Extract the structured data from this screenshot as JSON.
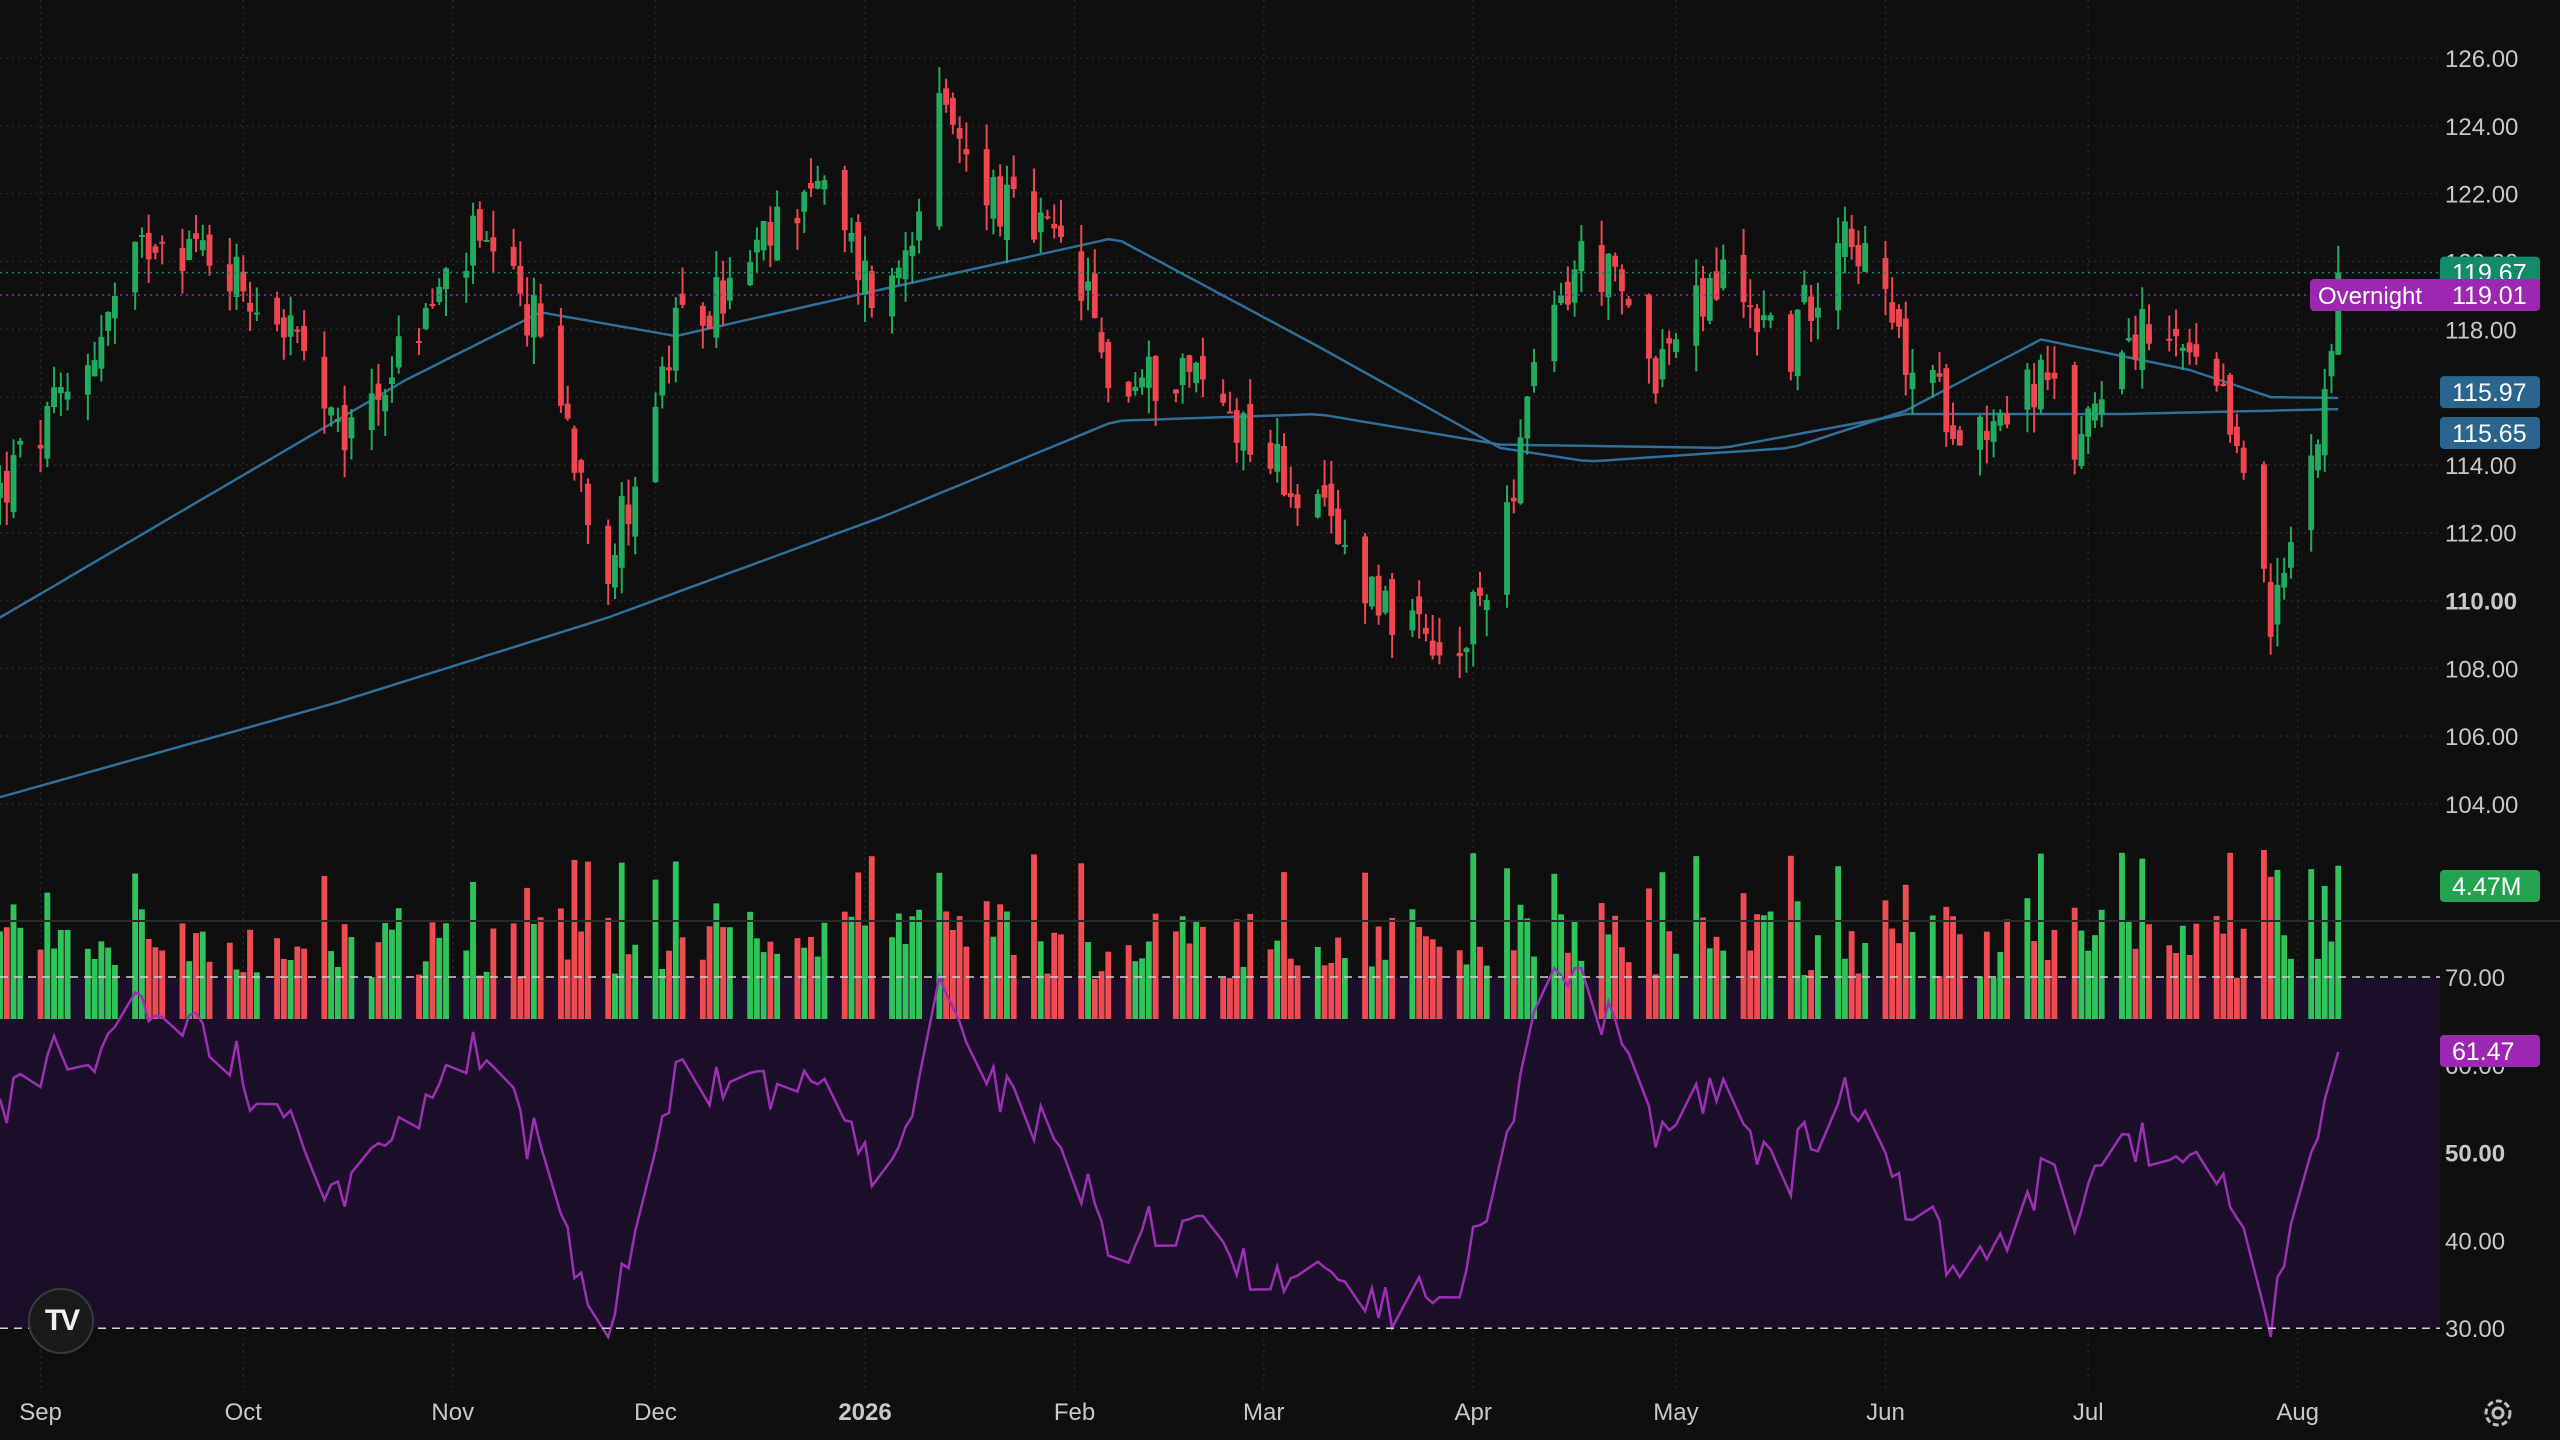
{
  "app": {
    "logo_text": "TV"
  },
  "colors": {
    "background": "#0f0f0f",
    "grid": "#262626",
    "up": "#22ab5f",
    "down": "#f0464f",
    "volume_up": "#2fc35a",
    "volume_down": "#ee4b52",
    "ma_line": "#2f6f99",
    "rsi_line": "#9c2fb4",
    "rsi_band": "#1c0f2a",
    "axis_text": "#c8c8c8"
  },
  "price_axis": {
    "ticks": [
      "126.00",
      "124.00",
      "122.00",
      "120.00",
      "118.00",
      "116.00",
      "114.00",
      "112.00",
      "110.00",
      "108.00",
      "106.00",
      "104.00"
    ],
    "bold_tick": "110.00",
    "range": [
      103.3,
      126.9
    ]
  },
  "rsi_axis": {
    "ticks": [
      "70.00",
      "60.00",
      "50.00",
      "40.00",
      "30.00"
    ],
    "bold_tick": "50.00",
    "range": [
      28,
      74
    ],
    "upper_band": 70,
    "lower_band": 30
  },
  "time_axis": {
    "labels": [
      "Sep",
      "Oct",
      "Nov",
      "Dec",
      "2026",
      "Feb",
      "Mar",
      "Apr",
      "May",
      "Jun",
      "Jul",
      "Aug"
    ],
    "bold_label": "2026"
  },
  "badges": {
    "last_price": {
      "text": "119.67",
      "value": 119.67,
      "color": "#138a6a"
    },
    "overnight": {
      "label": "Overnight",
      "text": "119.01",
      "value": 119.01,
      "color": "#9c27b0"
    },
    "ma_short": {
      "text": "115.97",
      "value": 115.97,
      "color": "#2a6590"
    },
    "ma_long": {
      "text": "115.65",
      "value": 115.65,
      "color": "#2a6590"
    },
    "volume": {
      "text": "4.47M",
      "color": "#23a34f"
    },
    "rsi": {
      "text": "61.47",
      "value": 61.47,
      "color": "#9c27b0"
    }
  },
  "chart_data": {
    "type": "candlestick",
    "title": "",
    "xlabel": "",
    "ylabel": "",
    "ylim": [
      103.3,
      126.9
    ],
    "x_range": [
      "2025-08-26",
      "2026-08-08"
    ],
    "close_anchors": [
      [
        "2025-08-26",
        113.2
      ],
      [
        "2025-09-05",
        116.0
      ],
      [
        "2025-09-18",
        121.0
      ],
      [
        "2025-09-28",
        120.0
      ],
      [
        "2025-10-08",
        118.0
      ],
      [
        "2025-10-15",
        114.5
      ],
      [
        "2025-10-25",
        117.5
      ],
      [
        "2025-11-04",
        120.5
      ],
      [
        "2025-11-14",
        118.0
      ],
      [
        "2025-11-24",
        111.0
      ],
      [
        "2025-12-04",
        117.8
      ],
      [
        "2025-12-14",
        119.5
      ],
      [
        "2025-12-24",
        122.5
      ],
      [
        "2026-01-04",
        118.5
      ],
      [
        "2026-01-12",
        124.2
      ],
      [
        "2026-01-22",
        121.5
      ],
      [
        "2026-02-01",
        120.0
      ],
      [
        "2026-02-07",
        116.0
      ],
      [
        "2026-02-17",
        117.0
      ],
      [
        "2026-02-27",
        115.0
      ],
      [
        "2026-03-09",
        112.5
      ],
      [
        "2026-03-19",
        110.0
      ],
      [
        "2026-03-29",
        107.5
      ],
      [
        "2026-04-05",
        112.0
      ],
      [
        "2026-04-12",
        118.0
      ],
      [
        "2026-04-18",
        120.5
      ],
      [
        "2026-04-28",
        117.0
      ],
      [
        "2026-05-08",
        119.5
      ],
      [
        "2026-05-18",
        117.5
      ],
      [
        "2026-05-26",
        121.5
      ],
      [
        "2026-06-04",
        117.0
      ],
      [
        "2026-06-14",
        115.0
      ],
      [
        "2026-06-24",
        116.5
      ],
      [
        "2026-06-29",
        114.5
      ],
      [
        "2026-07-06",
        118.0
      ],
      [
        "2026-07-16",
        117.0
      ],
      [
        "2026-07-24",
        114.5
      ],
      [
        "2026-07-28",
        109.0
      ],
      [
        "2026-08-01",
        112.5
      ],
      [
        "2026-08-04",
        115.5
      ],
      [
        "2026-08-08",
        119.67
      ]
    ],
    "ma_short_anchors": [
      [
        "2025-08-26",
        109.5
      ],
      [
        "2025-10-25",
        116.5
      ],
      [
        "2025-11-14",
        118.5
      ],
      [
        "2025-12-04",
        117.8
      ],
      [
        "2026-01-04",
        119.2
      ],
      [
        "2026-02-07",
        120.7
      ],
      [
        "2026-03-09",
        117.5
      ],
      [
        "2026-04-05",
        114.5
      ],
      [
        "2026-04-18",
        114.1
      ],
      [
        "2026-05-18",
        114.5
      ],
      [
        "2026-06-04",
        115.6
      ],
      [
        "2026-06-24",
        117.7
      ],
      [
        "2026-07-16",
        116.8
      ],
      [
        "2026-07-28",
        116.0
      ],
      [
        "2026-08-08",
        115.97
      ]
    ],
    "ma_long_anchors": [
      [
        "2025-08-26",
        104.2
      ],
      [
        "2025-10-15",
        107.0
      ],
      [
        "2025-11-24",
        109.5
      ],
      [
        "2026-01-04",
        112.5
      ],
      [
        "2026-02-07",
        115.3
      ],
      [
        "2026-03-09",
        115.5
      ],
      [
        "2026-04-05",
        114.6
      ],
      [
        "2026-05-08",
        114.5
      ],
      [
        "2026-06-04",
        115.5
      ],
      [
        "2026-07-06",
        115.5
      ],
      [
        "2026-08-08",
        115.65
      ]
    ],
    "volume_last": "4.47M",
    "rsi": {
      "ylim": [
        28,
        74
      ],
      "last": 61.47,
      "upper": 70,
      "lower": 30
    }
  }
}
